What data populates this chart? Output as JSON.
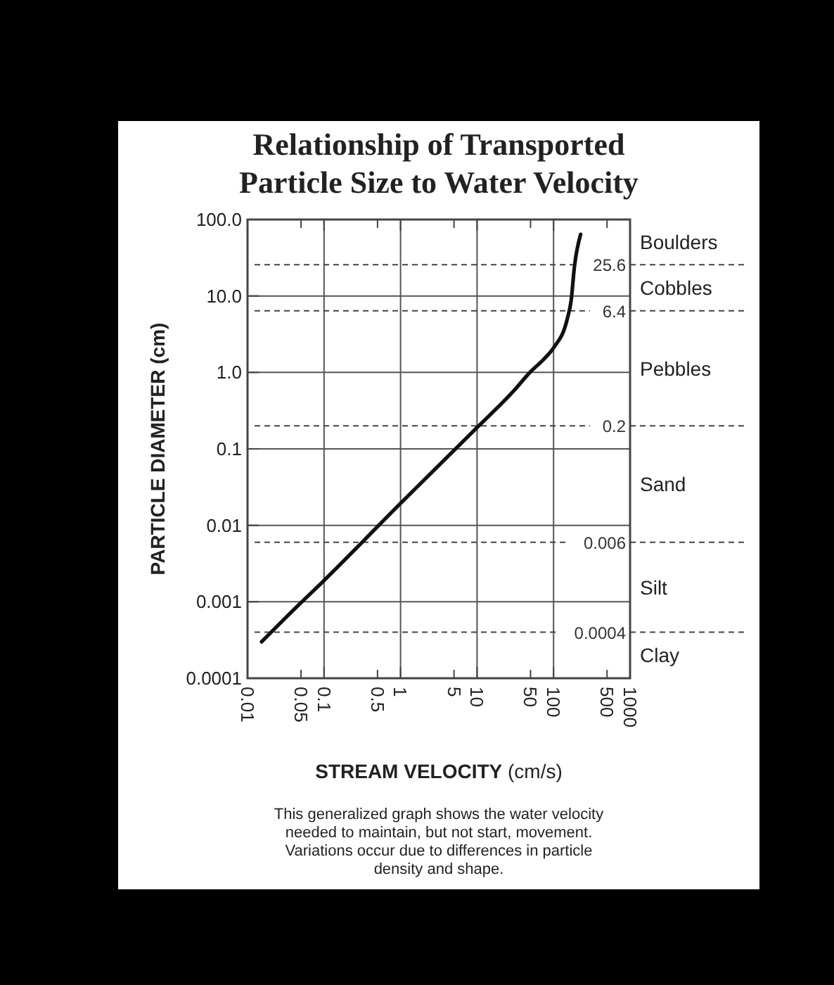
{
  "chart_data": {
    "type": "line",
    "title": "Relationship of Transported\nParticle Size to Water Velocity",
    "xlabel": "STREAM VELOCITY (cm/s)",
    "ylabel": "PARTICLE DIAMETER (cm)",
    "log": "xy",
    "x": [
      0.0153,
      0.045,
      0.1,
      1,
      10,
      30,
      49,
      75,
      100,
      151,
      170,
      187,
      226
    ],
    "series": [
      {
        "color": "#111111",
        "values": [
          0.0003,
          0.00088,
          0.0019,
          0.0194,
          0.19,
          0.57,
          1.0,
          1.5,
          2.1,
          5.0,
          8.8,
          23.7,
          64
        ]
      }
    ],
    "xlim": [
      0.01,
      1000
    ],
    "ylim": [
      0.0001,
      100
    ],
    "xticks": [
      0.01,
      0.05,
      0.1,
      0.5,
      1,
      5,
      10,
      50,
      100,
      500,
      1000
    ],
    "yticks": [
      {
        "value": 100,
        "label": "100.0"
      },
      {
        "value": 10,
        "label": "10.0"
      },
      {
        "value": 1,
        "label": "1.0"
      },
      0.1,
      0.01,
      0.001,
      0.0001
    ],
    "grid": true,
    "marker": "none",
    "line_style": "solid",
    "ref_lines": [
      {
        "axis": "y",
        "value": 25.6,
        "label": "25.6",
        "line_style": "dashed"
      },
      {
        "axis": "y",
        "value": 6.4,
        "label": "6.4",
        "line_style": "dashed"
      },
      {
        "axis": "y",
        "value": 0.2,
        "label": "0.2",
        "line_style": "dashed"
      },
      {
        "axis": "y",
        "value": 0.006,
        "label": "0.006",
        "line_style": "dashed"
      },
      {
        "axis": "y",
        "value": 0.0004,
        "label": "0.0004",
        "line_style": "dashed"
      }
    ],
    "annotations": [
      "Boulders",
      "Cobbles",
      "Pebbles",
      "Sand",
      "Silt",
      "Clay",
      "This generalized graph shows the water velocity needed to maintain, but not start, movement. Variations occur due to differences in particle density and shape."
    ]
  }
}
